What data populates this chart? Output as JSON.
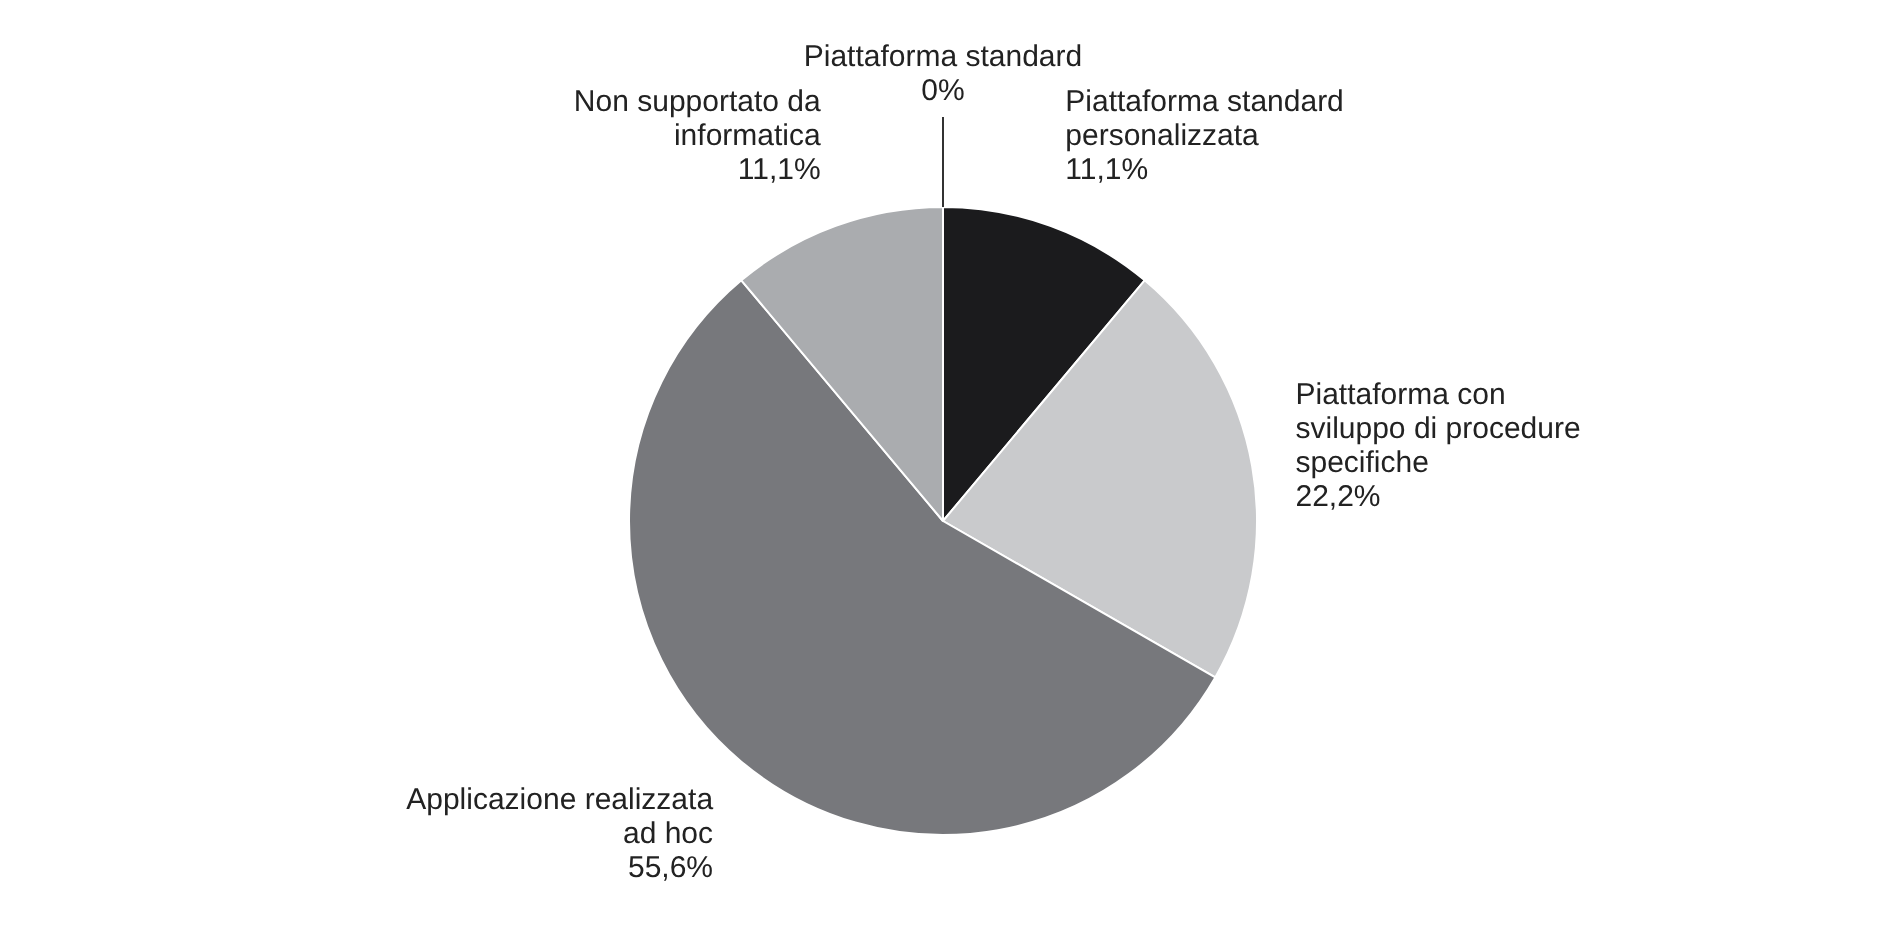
{
  "chart_data": {
    "type": "pie",
    "categories": [
      "Piattaforma standard",
      "Piattaforma standard personalizzata",
      "Piattaforma con sviluppo di procedure specifiche",
      "Applicazione realizzata ad hoc",
      "Non supportato da informatica"
    ],
    "values": [
      0,
      11.1,
      22.2,
      55.6,
      11.1
    ],
    "value_labels": [
      "0%",
      "11,1%",
      "22,2%",
      "55,6%",
      "11,1%"
    ],
    "colors": [
      "#8a8b8f",
      "#1b1b1d",
      "#c9cacc",
      "#77787c",
      "#aaacaf"
    ],
    "legend": false
  }
}
